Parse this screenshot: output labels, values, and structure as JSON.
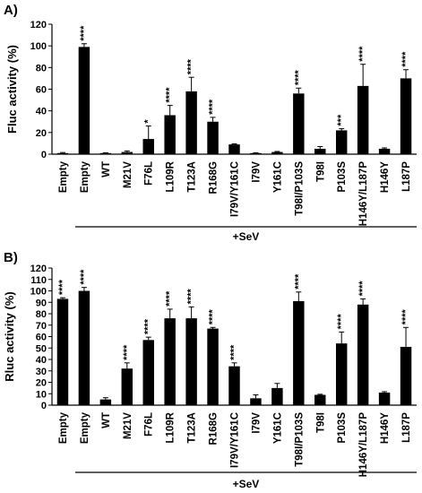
{
  "chart_data": [
    {
      "type": "bar",
      "panel_label": "A)",
      "ylabel": "Fluc activity (%)",
      "ylim": [
        0,
        120
      ],
      "yticks": [
        "0",
        "20",
        "40",
        "60",
        "80",
        "100",
        "120"
      ],
      "categories": [
        "Empty",
        "Empty",
        "WT",
        "M21V",
        "F76L",
        "L109R",
        "T123A",
        "R168G",
        "I79V/Y161C",
        "I79V",
        "Y161C",
        "T98I/P103S",
        "T98I",
        "P103S",
        "H146Y/L187P",
        "H146Y",
        "L187P"
      ],
      "values": [
        1,
        99,
        1,
        2,
        14,
        36,
        58,
        30,
        9,
        1,
        2,
        56,
        5,
        22,
        63,
        5,
        70
      ],
      "errors": [
        0.5,
        3,
        0.3,
        1,
        12,
        9,
        13,
        4,
        0.5,
        0.3,
        0.5,
        5,
        2,
        1.5,
        20,
        0.8,
        8
      ],
      "significance": [
        "",
        "****",
        "",
        "",
        "*",
        "****",
        "****",
        "****",
        "",
        "",
        "",
        "****",
        "",
        "***",
        "****",
        "",
        "****"
      ],
      "group_label": "+SeV",
      "group_start": 1
    },
    {
      "type": "bar",
      "panel_label": "B)",
      "ylabel": "Rluc activity (%)",
      "ylim": [
        0,
        120
      ],
      "yticks": [
        "0",
        "10",
        "20",
        "30",
        "40",
        "50",
        "60",
        "70",
        "80",
        "90",
        "100",
        "110",
        "120"
      ],
      "categories": [
        "Empty",
        "Empty",
        "WT",
        "M21V",
        "F76L",
        "L109R",
        "T123A",
        "R168G",
        "I79V/Y161C",
        "I79V",
        "Y161C",
        "T98I/P103S",
        "T98I",
        "P103S",
        "H146Y/L187P",
        "H146Y",
        "L187P"
      ],
      "values": [
        93,
        100,
        5,
        32,
        57,
        76,
        76,
        67,
        34,
        6,
        15,
        91,
        9,
        54,
        88,
        11,
        51
      ],
      "errors": [
        1,
        3,
        1.5,
        5,
        2.5,
        8,
        10,
        1,
        3,
        3,
        4,
        8,
        0.5,
        10,
        5,
        0.8,
        17
      ],
      "significance": [
        "****",
        "****",
        "",
        "****",
        "****",
        "****",
        "****",
        "****",
        "****",
        "",
        "",
        "****",
        "",
        "****",
        "****",
        "",
        "****"
      ],
      "group_label": "+SeV",
      "group_start": 1
    }
  ]
}
